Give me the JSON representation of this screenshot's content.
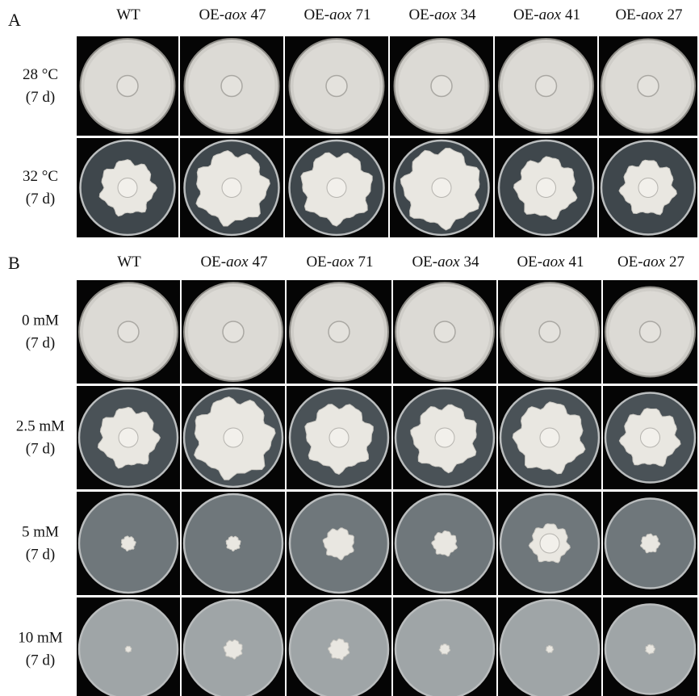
{
  "panels": [
    {
      "label": "A",
      "columns": [
        {
          "prefix": "WT"
        },
        {
          "prefix": "OE-",
          "gene": "aox",
          "line": "47"
        },
        {
          "prefix": "OE-",
          "gene": "aox",
          "line": "71"
        },
        {
          "prefix": "OE-",
          "gene": "aox",
          "line": "34"
        },
        {
          "prefix": "OE-",
          "gene": "aox",
          "line": "41"
        },
        {
          "prefix": "OE-",
          "gene": "aox",
          "line": "27"
        }
      ],
      "rows": [
        {
          "condition": "28 °C",
          "duration": "(7 d)"
        },
        {
          "condition": "32 °C",
          "duration": "(7 d)"
        }
      ]
    },
    {
      "label": "B",
      "columns": [
        {
          "prefix": "WT"
        },
        {
          "prefix": "OE-",
          "gene": "aox",
          "line": "47"
        },
        {
          "prefix": "OE-",
          "gene": "aox",
          "line": "71"
        },
        {
          "prefix": "OE-",
          "gene": "aox",
          "line": "34"
        },
        {
          "prefix": "OE-",
          "gene": "aox",
          "line": "41"
        },
        {
          "prefix": "OE-",
          "gene": "aox",
          "line": "27"
        }
      ],
      "rows": [
        {
          "condition": "0 mM",
          "duration": "(7 d)"
        },
        {
          "condition": "2.5 mM",
          "duration": "(7 d)"
        },
        {
          "condition": "5 mM",
          "duration": "(7 d)"
        },
        {
          "condition": "10 mM",
          "duration": "(7 d)"
        }
      ]
    }
  ]
}
